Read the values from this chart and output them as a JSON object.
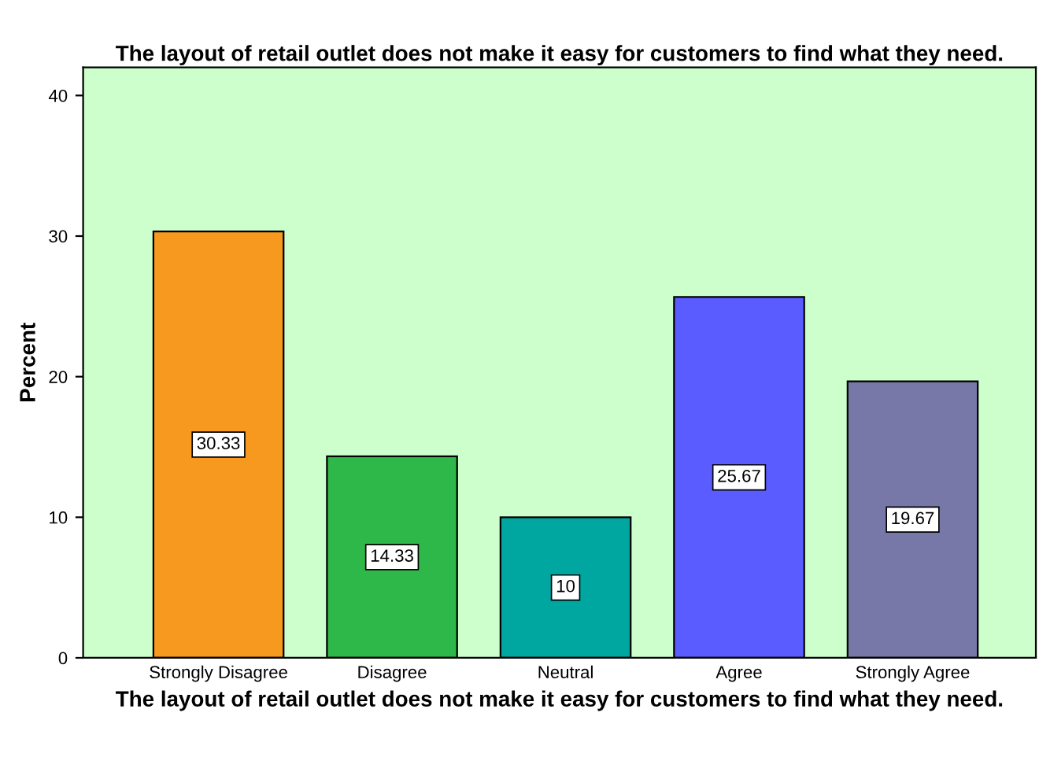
{
  "chart_data": {
    "type": "bar",
    "title": "The layout of retail outlet does not make it easy for customers to find what they need.",
    "xlabel": "The layout of retail outlet does not make it easy for customers to find what they need.",
    "ylabel": "Percent",
    "categories": [
      "Strongly Disagree",
      "Disagree",
      "Neutral",
      "Agree",
      "Strongly Agree"
    ],
    "values": [
      30.33,
      14.33,
      10,
      25.67,
      19.67
    ],
    "colors": [
      "#f7991f",
      "#2fb84a",
      "#00a6a0",
      "#5b5cff",
      "#7878a8"
    ],
    "ylim": [
      0,
      42
    ],
    "yticks": [
      0,
      10,
      20,
      30,
      40
    ],
    "grid": false,
    "data_labels": true,
    "legend": false
  }
}
